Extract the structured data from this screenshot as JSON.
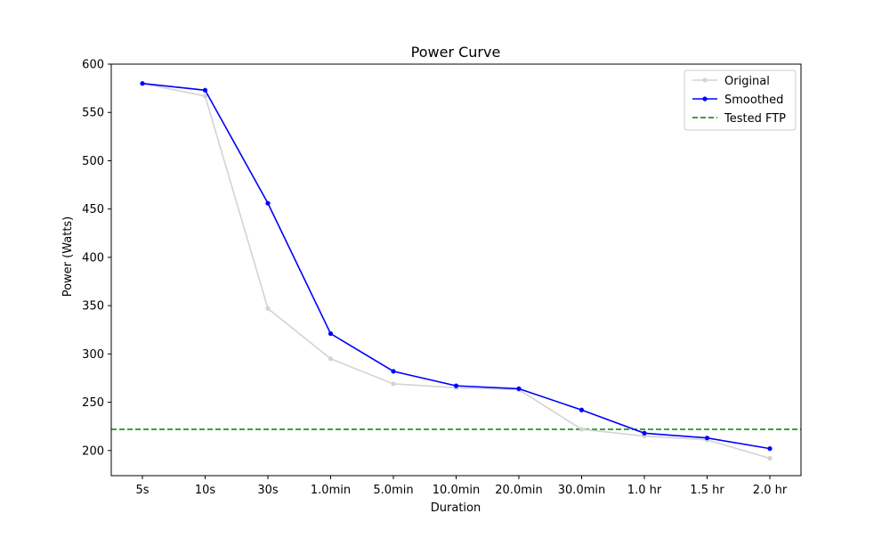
{
  "chart_data": {
    "type": "line",
    "title": "Power Curve",
    "xlabel": "Duration",
    "ylabel": "Power (Watts)",
    "categories": [
      "5s",
      "10s",
      "30s",
      "1.0min",
      "5.0min",
      "10.0min",
      "20.0min",
      "30.0min",
      "1.0 hr",
      "1.5 hr",
      "2.0 hr"
    ],
    "ylim": [
      174,
      600
    ],
    "yticks": [
      200,
      250,
      300,
      350,
      400,
      450,
      500,
      550,
      600
    ],
    "grid": false,
    "legend_position": "top-right",
    "series": [
      {
        "name": "Original",
        "color": "#d3d3d3",
        "style": "solid-markers",
        "values": [
          580,
          567,
          347,
          295,
          269,
          265,
          263,
          222,
          215,
          211,
          192
        ]
      },
      {
        "name": "Smoothed",
        "color": "#0000ff",
        "style": "solid-markers",
        "values": [
          580,
          573,
          456,
          321,
          282,
          267,
          264,
          242,
          218,
          213,
          202
        ]
      }
    ],
    "reference_lines": [
      {
        "name": "Tested FTP",
        "color": "#008000",
        "style": "dashed",
        "value": 222
      }
    ]
  }
}
